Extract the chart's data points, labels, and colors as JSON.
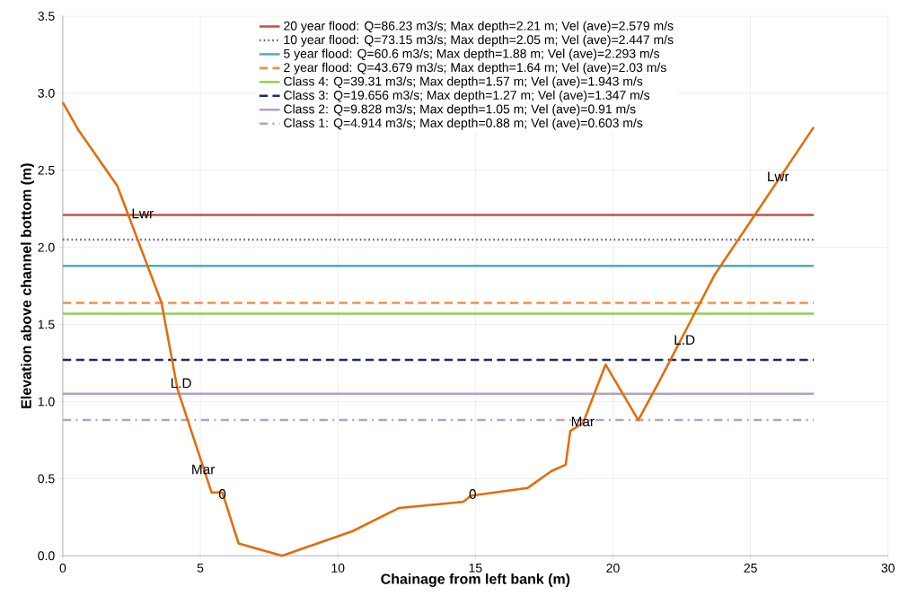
{
  "chart_data": {
    "type": "line",
    "xlabel": "Chainage from left bank (m)",
    "ylabel": "Elevation above channel bottom (m)",
    "xlim": [
      0,
      30
    ],
    "ylim": [
      0,
      3.5
    ],
    "xticks": [
      0,
      5,
      10,
      15,
      20,
      25,
      30
    ],
    "yticks": [
      {
        "value": 0,
        "label": "0.0"
      },
      {
        "value": 0.5,
        "label": "0.5"
      },
      {
        "value": 1,
        "label": "1.0"
      },
      {
        "value": 1.5,
        "label": "1.5"
      },
      {
        "value": 2,
        "label": "2.0"
      },
      {
        "value": 2.5,
        "label": "2.5"
      },
      {
        "value": 3,
        "label": "3.0"
      },
      {
        "value": 3.5,
        "label": "3.5"
      }
    ],
    "grid": true,
    "legend": "top",
    "marker": "none",
    "series": [
      {
        "name": "20 year flood: Q=86.23 m3/s; Max depth=2.21 m; Vel (ave)=2.579 m/s",
        "color": "#c0504d",
        "line_style": "solid",
        "x": [
          0,
          27.3
        ],
        "values": [
          2.21,
          2.21
        ]
      },
      {
        "name": "10 year flood: Q=73.15 m3/s; Max depth=2.05 m; Vel (ave)=2.447 m/s",
        "color": "#7055a0",
        "line_style": "dotted",
        "x": [
          0,
          27.3
        ],
        "values": [
          2.05,
          2.05
        ]
      },
      {
        "name": "5 year flood: Q=60.6 m3/s; Max depth=1.88 m; Vel (ave)=2.293 m/s",
        "color": "#4bacc6",
        "line_style": "solid",
        "x": [
          0,
          27.3
        ],
        "values": [
          1.88,
          1.88
        ]
      },
      {
        "name": "2 year flood: Q=43.679 m3/s; Max depth=1.64 m; Vel (ave)=2.03 m/s",
        "color": "#f0914a",
        "line_style": "dashed",
        "x": [
          0,
          27.3
        ],
        "values": [
          1.64,
          1.64
        ]
      },
      {
        "name": "Class 4: Q=39.31 m3/s; Max depth=1.57 m; Vel (ave)=1.943 m/s",
        "color": "#92d050",
        "line_style": "solid",
        "x": [
          0,
          27.3
        ],
        "values": [
          1.57,
          1.57
        ]
      },
      {
        "name": "Class 3: Q=19.656 m3/s; Max depth=1.27 m; Vel (ave)=1.347 m/s",
        "color": "#1f2a5e",
        "line_style": "dashed",
        "x": [
          0,
          27.3
        ],
        "values": [
          1.27,
          1.27
        ]
      },
      {
        "name": "Class 2: Q=9.828 m3/s; Max depth=1.05 m; Vel (ave)=0.91 m/s",
        "color": "#b3a2c7",
        "line_style": "solid",
        "x": [
          0,
          27.3
        ],
        "values": [
          1.05,
          1.05
        ]
      },
      {
        "name": "Class 1: Q=4.914 m3/s; Max depth=0.88 m; Vel (ave)=0.603 m/s",
        "color": "#b3a2c7",
        "line_style": "dashdot",
        "x": [
          0,
          27.3
        ],
        "values": [
          0.88,
          0.88
        ]
      },
      {
        "color": "#e46c0a",
        "line_style": "solid",
        "x": [
          0,
          0.57,
          1.98,
          3.59,
          4.17,
          5.41,
          5.8,
          6.39,
          7.97,
          10.54,
          12.23,
          14.56,
          14.84,
          16.9,
          17.77,
          18.28,
          18.45,
          18.91,
          19.73,
          20.92,
          21.68,
          23.69,
          27.3
        ],
        "values": [
          2.94,
          2.76,
          2.4,
          1.64,
          1.08,
          0.41,
          0.41,
          0.08,
          0,
          0.16,
          0.31,
          0.35,
          0.39,
          0.44,
          0.55,
          0.59,
          0.81,
          0.86,
          1.24,
          0.88,
          1.13,
          1.82,
          2.78
        ]
      }
    ],
    "annotations": [
      {
        "text": "Lwr",
        "x": 2.9,
        "y": 2.22
      },
      {
        "text": "L.D",
        "x": 4.3,
        "y": 1.12
      },
      {
        "text": "Mar",
        "x": 5.1,
        "y": 0.56
      },
      {
        "text": "0",
        "x": 5.8,
        "y": 0.4
      },
      {
        "text": "0",
        "x": 14.9,
        "y": 0.4
      },
      {
        "text": "Mar",
        "x": 18.9,
        "y": 0.87
      },
      {
        "text": "L.D",
        "x": 22.6,
        "y": 1.4
      },
      {
        "text": "Lwr",
        "x": 26.0,
        "y": 2.46
      }
    ]
  }
}
